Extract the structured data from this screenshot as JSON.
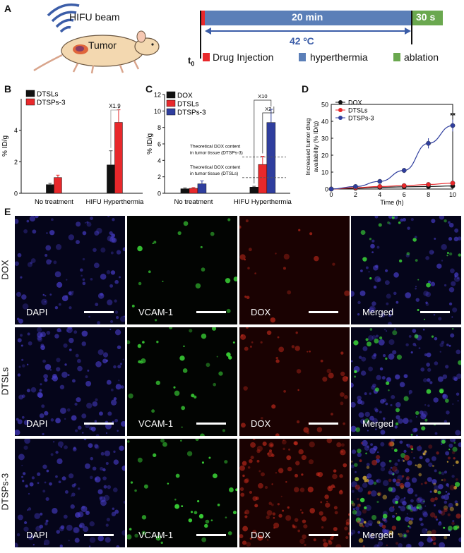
{
  "panelA": {
    "letter": "A",
    "hifu": "HIFU beam",
    "tumor": "Tumor",
    "t0": "t",
    "t0sub": "0",
    "duration": "20 min",
    "ablation_time": "30 s",
    "temp": "42 ºC",
    "legend": [
      "Drug Injection",
      "hyperthermia",
      "ablation"
    ],
    "colors": {
      "drug": "#e8282b",
      "hyper": "#5b7fb8",
      "ablate": "#6aa84f"
    }
  },
  "panelB": {
    "letter": "B",
    "fold": "X1.9"
  },
  "panelC": {
    "letter": "C",
    "fold1": "X10",
    "fold2": "X2",
    "note1": "Theoretical DOX content in tumor tissue (DTSPs-3)",
    "note2": "Theoretical DOX content in tumor tissue (DTSLs)"
  },
  "panelD": {
    "letter": "D",
    "sig": "**"
  },
  "panelE": {
    "letter": "E",
    "rows": [
      "DOX",
      "DTSLs",
      "DTSPs-3"
    ],
    "cols": [
      "DAPI",
      "VCAM-1",
      "DOX",
      "Merged"
    ]
  },
  "chart_data": [
    {
      "type": "bar",
      "panel": "B",
      "categories": [
        "No treatment",
        "HIFU Hyperthermia"
      ],
      "ylabel": "% ID/g",
      "ylim": [
        0,
        6
      ],
      "yticks": [
        0,
        2,
        4
      ],
      "series": [
        {
          "name": "DTSLs",
          "color": "#111111",
          "values": [
            0.55,
            1.8
          ],
          "errors": [
            0.08,
            0.9
          ]
        },
        {
          "name": "DTSPs-3",
          "color": "#e8282b",
          "values": [
            1.0,
            4.5
          ],
          "errors": [
            0.15,
            0.8
          ]
        }
      ]
    },
    {
      "type": "bar",
      "panel": "C",
      "categories": [
        "No treatment",
        "HIFU Hyperthermia"
      ],
      "ylabel": "% ID/g",
      "ylim": [
        0,
        12
      ],
      "yticks": [
        0,
        2,
        4,
        6,
        8,
        10,
        12
      ],
      "series": [
        {
          "name": "DOX",
          "color": "#111111",
          "values": [
            0.55,
            0.75
          ],
          "errors": [
            0.1,
            0.1
          ]
        },
        {
          "name": "DTSLs",
          "color": "#e8282b",
          "values": [
            0.6,
            3.5
          ],
          "errors": [
            0.1,
            1.0
          ]
        },
        {
          "name": "DTSPs-3",
          "color": "#2f3e9e",
          "values": [
            1.15,
            8.6
          ],
          "errors": [
            0.35,
            1.6
          ]
        }
      ],
      "reference_lines": [
        4.4,
        1.9
      ]
    },
    {
      "type": "line",
      "panel": "D",
      "xlabel": "Time (h)",
      "ylabel": "Increased tumor drug availability (% ID/g)",
      "xlim": [
        0,
        10
      ],
      "ylim": [
        0,
        50
      ],
      "xticks": [
        0,
        2,
        4,
        6,
        8,
        10
      ],
      "yticks": [
        0,
        10,
        20,
        30,
        40,
        50
      ],
      "x": [
        0,
        2,
        4,
        6,
        8,
        10
      ],
      "series": [
        {
          "name": "DOX",
          "color": "#111111",
          "values": [
            0,
            0.5,
            1.0,
            1.3,
            1.5,
            1.8
          ]
        },
        {
          "name": "DTSLs",
          "color": "#e8282b",
          "values": [
            0,
            0.8,
            1.5,
            2.0,
            2.7,
            3.5
          ]
        },
        {
          "name": "DTSPs-3",
          "color": "#2f3e9e",
          "values": [
            0,
            1.5,
            4.5,
            11.0,
            27.0,
            37.5
          ],
          "errors": [
            0.3,
            0.5,
            0.8,
            1.5,
            3.0,
            3.5
          ]
        }
      ]
    }
  ]
}
